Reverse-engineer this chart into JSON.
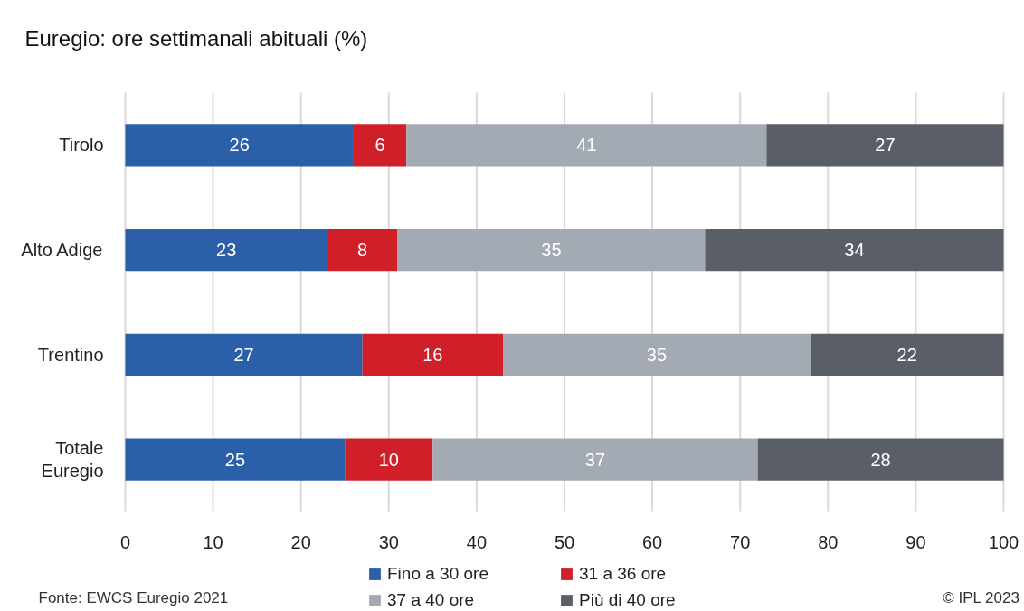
{
  "chart_data": {
    "type": "bar",
    "orientation": "horizontal",
    "stacked": true,
    "title": "Euregio: ore settimanali abituali (%)",
    "categories": [
      "Tirolo",
      "Alto Adige",
      "Trentino",
      "Totale Euregio"
    ],
    "series": [
      {
        "name": "Fino a 30 ore",
        "color": "#2c5faa",
        "values": [
          26,
          23,
          27,
          25
        ]
      },
      {
        "name": "31 a 36 ore",
        "color": "#d01f29",
        "values": [
          6,
          8,
          16,
          10
        ]
      },
      {
        "name": "37 a 40 ore",
        "color": "#a3aab3",
        "values": [
          41,
          35,
          35,
          37
        ]
      },
      {
        "name": "Più di 40 ore",
        "color": "#5a5f67",
        "values": [
          27,
          34,
          22,
          28
        ]
      }
    ],
    "xlim": [
      0,
      100
    ],
    "xticks": [
      0,
      10,
      20,
      30,
      40,
      50,
      60,
      70,
      80,
      90,
      100
    ],
    "grid": "x",
    "legend": "bottom",
    "data_labels": true,
    "annotations": [
      "Fonte: EWCS Euregio 2021",
      "© IPL 2023"
    ]
  }
}
